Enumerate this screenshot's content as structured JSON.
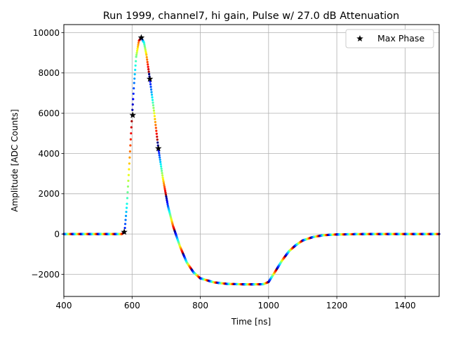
{
  "chart_data": {
    "type": "scatter",
    "title": "Run 1999, channel7, hi gain, Pulse w/ 27.0 dB Attenuation",
    "xlabel": "Time [ns]",
    "ylabel": "Amplitude [ADC Counts]",
    "xlim": [
      400,
      1500
    ],
    "ylim": [
      -3100,
      10400
    ],
    "xticks": [
      400,
      600,
      800,
      1000,
      1200,
      1400
    ],
    "yticks": [
      -2000,
      0,
      2000,
      4000,
      6000,
      8000,
      10000
    ],
    "xtick_labels": [
      "400",
      "600",
      "800",
      "1000",
      "1200",
      "1400"
    ],
    "ytick_labels": [
      "−2000",
      "0",
      "2000",
      "4000",
      "6000",
      "8000",
      "10000"
    ],
    "grid": true,
    "legend": {
      "position": "top-right",
      "entries": [
        "Max Phase"
      ]
    },
    "series": [
      {
        "kind": "waveform",
        "marker": "dot",
        "color_map": "jet",
        "curve": [
          [
            400,
            0
          ],
          [
            570,
            0
          ],
          [
            578,
            100
          ],
          [
            585,
            1500
          ],
          [
            592,
            3500
          ],
          [
            600,
            5900
          ],
          [
            606,
            7500
          ],
          [
            612,
            8800
          ],
          [
            620,
            9600
          ],
          [
            627,
            9750
          ],
          [
            635,
            9500
          ],
          [
            642,
            8900
          ],
          [
            652,
            7700
          ],
          [
            665,
            6000
          ],
          [
            677,
            4250
          ],
          [
            690,
            2800
          ],
          [
            705,
            1400
          ],
          [
            720,
            400
          ],
          [
            740,
            -600
          ],
          [
            760,
            -1400
          ],
          [
            780,
            -1900
          ],
          [
            800,
            -2200
          ],
          [
            840,
            -2400
          ],
          [
            880,
            -2480
          ],
          [
            940,
            -2500
          ],
          [
            985,
            -2490
          ],
          [
            1000,
            -2380
          ],
          [
            1020,
            -1850
          ],
          [
            1040,
            -1300
          ],
          [
            1060,
            -850
          ],
          [
            1080,
            -550
          ],
          [
            1100,
            -320
          ],
          [
            1130,
            -150
          ],
          [
            1160,
            -60
          ],
          [
            1200,
            -20
          ],
          [
            1300,
            0
          ],
          [
            1500,
            0
          ]
        ]
      },
      {
        "name": "Max Phase",
        "marker": "star",
        "color": "#000000",
        "points": [
          [
            577,
            100
          ],
          [
            602,
            5900
          ],
          [
            627,
            9750
          ],
          [
            652,
            7700
          ],
          [
            677,
            4250
          ]
        ]
      }
    ]
  }
}
